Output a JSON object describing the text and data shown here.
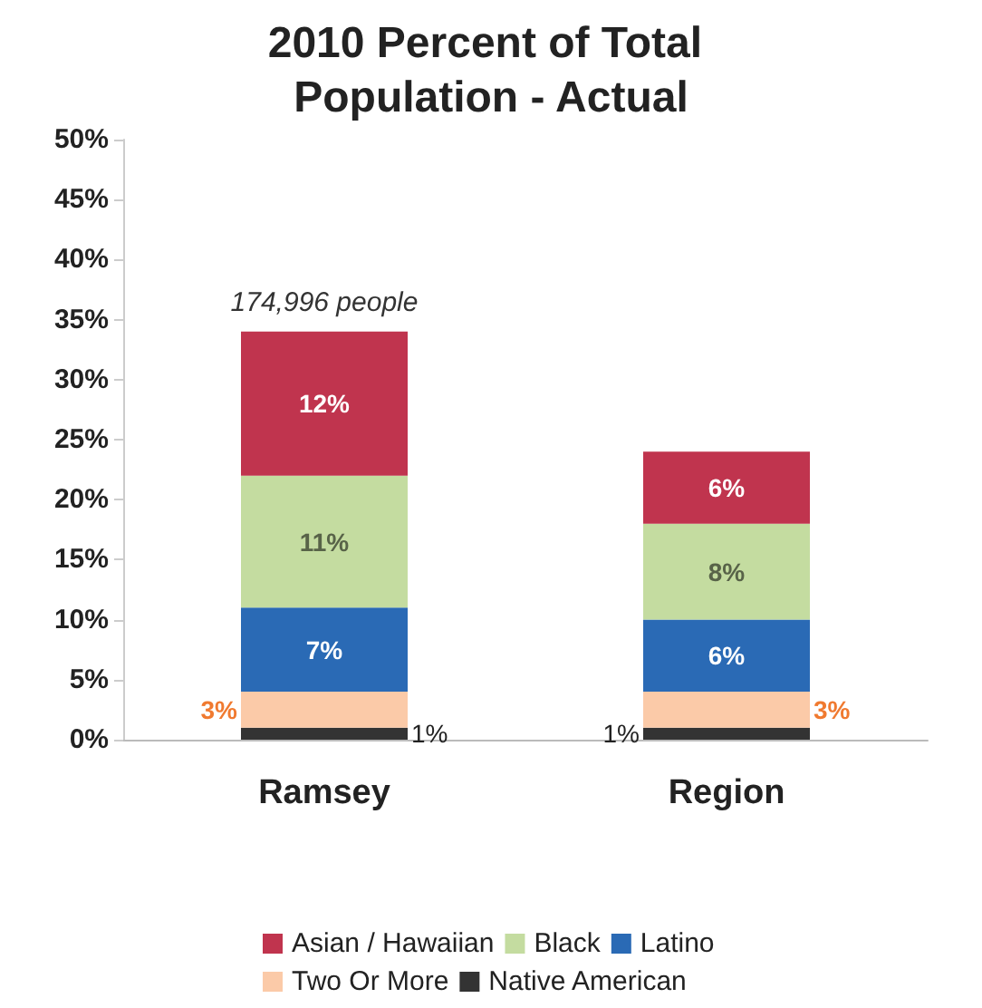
{
  "chart_data": {
    "type": "bar",
    "title": "2010 Percent of Total Population - Actual",
    "categories": [
      "Ramsey",
      "Region"
    ],
    "stacked": true,
    "legend": "bottom",
    "grid": false,
    "ylim": [
      0,
      50
    ],
    "yticks": [
      {
        "value": 0,
        "label": "0%"
      },
      {
        "value": 5,
        "label": "5%"
      },
      {
        "value": 10,
        "label": "10%"
      },
      {
        "value": 15,
        "label": "15%"
      },
      {
        "value": 20,
        "label": "20%"
      },
      {
        "value": 25,
        "label": "25%"
      },
      {
        "value": 30,
        "label": "30%"
      },
      {
        "value": 35,
        "label": "35%"
      },
      {
        "value": 40,
        "label": "40%"
      },
      {
        "value": 45,
        "label": "45%"
      },
      {
        "value": 50,
        "label": "50%"
      }
    ],
    "series": [
      {
        "name": "Native American",
        "color": "#333333",
        "values": [
          1,
          1
        ],
        "value_labels": [
          "1%",
          "1%"
        ]
      },
      {
        "name": "Two Or More",
        "color": "#fbcaa8",
        "values": [
          3,
          3
        ],
        "value_labels": [
          "3%",
          "3%"
        ]
      },
      {
        "name": "Latino",
        "color": "#2a6ab5",
        "values": [
          7,
          6
        ],
        "value_labels": [
          "7%",
          "6%"
        ]
      },
      {
        "name": "Black",
        "color": "#c4dca0",
        "values": [
          11,
          8
        ],
        "value_labels": [
          "11%",
          "8%"
        ]
      },
      {
        "name": "Asian / Hawaiian",
        "color": "#c0344e",
        "values": [
          12,
          6
        ],
        "value_labels": [
          "12%",
          "6%"
        ]
      }
    ],
    "annotations": [
      {
        "text": "174,996 people",
        "x": "Ramsey",
        "y": 34
      }
    ]
  }
}
